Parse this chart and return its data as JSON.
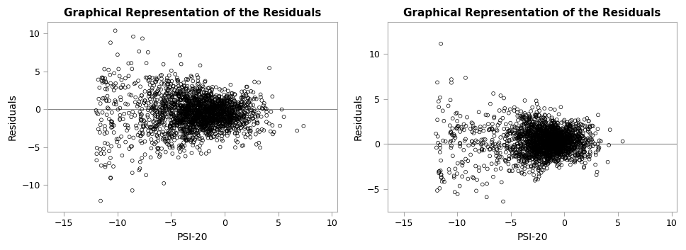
{
  "title": "Graphical Representation of the Residuals",
  "xlabel": "PSI-20",
  "ylabel": "Residuals",
  "xlim": [
    -16.5,
    10.5
  ],
  "ylim_left": [
    -13.5,
    11.5
  ],
  "ylim_right": [
    -7.5,
    13.5
  ],
  "xticks": [
    -15,
    -10,
    -5,
    0,
    5,
    10
  ],
  "yticks_left": [
    -10,
    -5,
    0,
    5,
    10
  ],
  "yticks_right": [
    -5,
    0,
    5,
    10
  ],
  "hline_y": 0,
  "n_points": 2000,
  "background_color": "white",
  "ax_background": "white",
  "title_fontsize": 11,
  "label_fontsize": 10,
  "tick_fontsize": 9,
  "hline_color": "#888888",
  "hline_linewidth": 0.8,
  "spine_color": "#aaaaaa",
  "marker_size_pts": 3.5,
  "marker_linewidth": 0.5
}
